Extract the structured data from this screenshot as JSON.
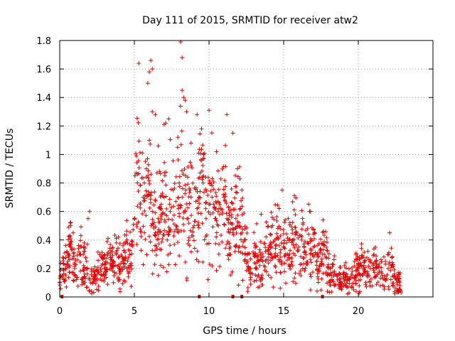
{
  "chart_data": {
    "type": "scatter",
    "title": "Day 111 of 2015, SRMTID for receiver atw2",
    "xlabel": "GPS time / hours",
    "ylabel": "SRMTID / TECUs",
    "xlim": [
      0,
      25
    ],
    "ylim": [
      0,
      1.8
    ],
    "xticks": [
      0,
      5,
      10,
      15,
      20
    ],
    "xtick_labels": [
      "0",
      "5",
      "10",
      "15",
      "20"
    ],
    "yticks": [
      0,
      0.2,
      0.4,
      0.6,
      0.8,
      1,
      1.2,
      1.4,
      1.6,
      1.8
    ],
    "ytick_labels": [
      "0",
      "0.2",
      "0.4",
      "0.6",
      "0.8",
      "1",
      "1.2",
      "1.4",
      "1.6",
      "1.8"
    ],
    "grid": true,
    "marker": "+",
    "color": "#e00000",
    "axis_marks_x": [
      0.15,
      9.35,
      11.6,
      12.2,
      17.6
    ],
    "series": [
      {
        "name": "atw2",
        "x": [
          0.0,
          0.2,
          0.4,
          0.6,
          0.8,
          1.0,
          1.2,
          1.4,
          1.6,
          1.8,
          2.0,
          2.2,
          2.4,
          2.6,
          2.8,
          3.0,
          3.2,
          3.4,
          3.6,
          3.8,
          4.0,
          4.2,
          4.4,
          4.6,
          4.8,
          5.0,
          5.2,
          5.4,
          5.6,
          5.8,
          6.0,
          6.2,
          6.4,
          6.6,
          6.8,
          7.0,
          7.2,
          7.4,
          7.6,
          7.8,
          8.0,
          8.2,
          8.4,
          8.6,
          8.8,
          9.0,
          9.2,
          9.4,
          9.6,
          9.8,
          10.0,
          10.2,
          10.4,
          10.6,
          10.8,
          11.0,
          11.2,
          11.4,
          11.6,
          11.8,
          12.0,
          12.2,
          12.4,
          12.6,
          12.8,
          13.0,
          13.2,
          13.4,
          13.6,
          13.8,
          14.0,
          14.2,
          14.4,
          14.6,
          14.8,
          15.0,
          15.2,
          15.4,
          15.6,
          15.8,
          16.0,
          16.2,
          16.4,
          16.6,
          16.8,
          17.0,
          17.2,
          17.4,
          17.6,
          17.8,
          18.0,
          18.2,
          18.4,
          18.6,
          18.8,
          19.0,
          19.2,
          19.4,
          19.6,
          19.8,
          20.0,
          20.2,
          20.4,
          20.6,
          20.8,
          21.0,
          21.2,
          21.4,
          21.6,
          21.8,
          22.0,
          22.2,
          22.4,
          22.6,
          22.8,
          0.7,
          0.9,
          1.9,
          2.0,
          5.3,
          5.9,
          6.0,
          6.1,
          6.2,
          6.2,
          6.4,
          8.1,
          8.2,
          8.2,
          8.3,
          8.4,
          8.5,
          9.2,
          10.0,
          11.2,
          11.6,
          12.2,
          14.9,
          17.0,
          22.1,
          6.0,
          6.6,
          7.1,
          7.3,
          7.9,
          8.8,
          9.5,
          10.5,
          11.9,
          13.5,
          15.3,
          16.3,
          16.8,
          21.0
        ],
        "y": [
          0.1,
          0.15,
          0.2,
          0.28,
          0.33,
          0.2,
          0.26,
          0.3,
          0.22,
          0.25,
          0.12,
          0.1,
          0.15,
          0.18,
          0.22,
          0.2,
          0.24,
          0.28,
          0.22,
          0.3,
          0.2,
          0.25,
          0.28,
          0.33,
          0.22,
          0.55,
          0.8,
          0.65,
          0.7,
          0.9,
          0.72,
          0.6,
          0.45,
          0.55,
          0.65,
          0.7,
          0.4,
          0.6,
          0.75,
          0.5,
          0.8,
          0.7,
          0.6,
          0.55,
          0.7,
          0.5,
          0.62,
          0.74,
          0.8,
          0.55,
          0.65,
          0.7,
          0.55,
          0.6,
          0.62,
          0.7,
          0.55,
          0.45,
          0.48,
          0.55,
          0.52,
          0.45,
          0.3,
          0.25,
          0.2,
          0.3,
          0.28,
          0.22,
          0.25,
          0.32,
          0.3,
          0.35,
          0.4,
          0.42,
          0.28,
          0.35,
          0.38,
          0.3,
          0.4,
          0.45,
          0.35,
          0.4,
          0.32,
          0.38,
          0.3,
          0.35,
          0.25,
          0.22,
          0.3,
          0.28,
          0.2,
          0.15,
          0.18,
          0.12,
          0.1,
          0.14,
          0.16,
          0.12,
          0.18,
          0.15,
          0.2,
          0.22,
          0.18,
          0.15,
          0.2,
          0.22,
          0.25,
          0.18,
          0.15,
          0.12,
          0.2,
          0.22,
          0.15,
          0.1,
          0.08,
          0.52,
          0.45,
          0.55,
          0.6,
          1.64,
          1.5,
          1.58,
          1.66,
          1.6,
          1.3,
          1.28,
          1.79,
          1.68,
          1.45,
          1.4,
          1.38,
          1.3,
          1.28,
          1.31,
          1.28,
          1.15,
          0.75,
          0.75,
          0.47,
          0.45,
          1.1,
          1.06,
          1.22,
          1.25,
          1.05,
          1.08,
          1.18,
          1.02,
          0.9,
          0.58,
          0.55,
          0.52,
          0.6,
          0.29
        ],
        "noise_points": 1400
      }
    ]
  }
}
